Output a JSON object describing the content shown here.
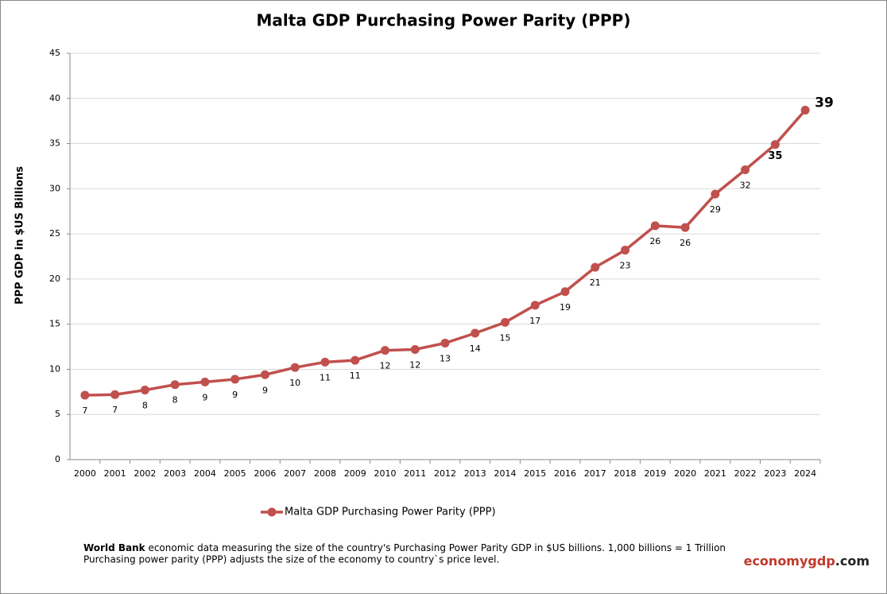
{
  "chart_data": {
    "type": "line",
    "title": "Malta GDP Purchasing Power Parity (PPP)",
    "y_label": "PPP GDP in $US Billions",
    "categories": [
      "2000",
      "2001",
      "2002",
      "2003",
      "2004",
      "2005",
      "2006",
      "2007",
      "2008",
      "2009",
      "2010",
      "2011",
      "2012",
      "2013",
      "2014",
      "2015",
      "2016",
      "2017",
      "2018",
      "2019",
      "2020",
      "2021",
      "2022",
      "2023",
      "2024"
    ],
    "series": [
      {
        "name": "Malta GDP Purchasing Power Parity (PPP)",
        "color": "#c0504d",
        "values": [
          7.13,
          7.2,
          7.7,
          8.3,
          8.6,
          8.9,
          9.4,
          10.2,
          10.8,
          11.0,
          12.1,
          12.2,
          12.9,
          14.0,
          15.2,
          17.1,
          18.6,
          21.3,
          23.2,
          25.9,
          25.7,
          29.4,
          32.1,
          34.9,
          38.7
        ],
        "value_labels": [
          "7",
          "7",
          "8",
          "8",
          "9",
          "9",
          "9",
          "10",
          "11",
          "11",
          "12",
          "12",
          "13",
          "14",
          "15",
          "17",
          "19",
          "21",
          "23",
          "26",
          "26",
          "29",
          "32",
          "35",
          "39"
        ]
      }
    ],
    "ylim": [
      0,
      45
    ],
    "yticks": [
      0,
      5,
      10,
      15,
      20,
      25,
      30,
      35,
      40,
      45
    ],
    "grid": true,
    "legend": "bottom"
  },
  "footnote": {
    "source": "World Bank",
    "line1": " economic data  measuring the size of the country's Purchasing Power Parity GDP in $US billions. 1,000 billions = 1 Trillion",
    "line2": "Purchasing power parity (PPP) adjusts the size of the economy to country`s price level."
  },
  "brand": [
    "economy",
    "gdp",
    ".com"
  ]
}
